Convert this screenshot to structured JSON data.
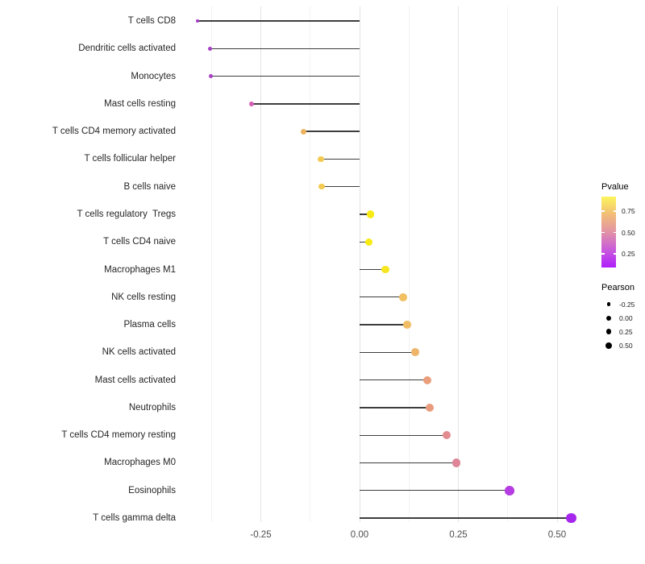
{
  "chart_data": {
    "type": "lollipop",
    "orientation": "horizontal",
    "title": "",
    "xlabel": "",
    "ylabel": "",
    "x_tick_labels": [
      "-0.25",
      "0.00",
      "0.25",
      "0.50"
    ],
    "x_tick_values": [
      -0.25,
      0.0,
      0.25,
      0.5
    ],
    "xlim": [
      -0.457,
      0.586
    ],
    "grid": {
      "minor_step": 0.125,
      "min": -0.375,
      "max": 0.5,
      "major_every": 0.25
    },
    "stick_color": "#3d3d3d",
    "background": "#ffffff",
    "legend_position": "right",
    "points": [
      {
        "label": "T cells CD8",
        "pearson": -0.41,
        "color": "#A43BC4",
        "size": 4.0
      },
      {
        "label": "Dendritic cells activated",
        "pearson": -0.378,
        "color": "#A73EC5",
        "size": 5.0
      },
      {
        "label": "Monocytes",
        "pearson": -0.376,
        "color": "#A940C6",
        "size": 5.2
      },
      {
        "label": "Mast cells resting",
        "pearson": -0.273,
        "color": "#D35FB4",
        "size": 6.3
      },
      {
        "label": "T cells CD4 memory activated",
        "pearson": -0.141,
        "color": "#EDB25F",
        "size": 7.0
      },
      {
        "label": "T cells follicular helper",
        "pearson": -0.098,
        "color": "#F3CA51",
        "size": 7.2
      },
      {
        "label": "B cells naive",
        "pearson": -0.096,
        "color": "#F3CA51",
        "size": 7.2
      },
      {
        "label": "T cells regulatory  Tregs",
        "pearson": 0.027,
        "color": "#F7EB13",
        "size": 9.3
      },
      {
        "label": "T cells CD4 naive",
        "pearson": 0.023,
        "color": "#F7EB13",
        "size": 9.3
      },
      {
        "label": "Macrophages M1",
        "pearson": 0.065,
        "color": "#F6E620",
        "size": 9.4
      },
      {
        "label": "NK cells resting",
        "pearson": 0.11,
        "color": "#F1C063",
        "size": 9.6
      },
      {
        "label": "Plasma cells",
        "pearson": 0.12,
        "color": "#F0BD66",
        "size": 9.7
      },
      {
        "label": "NK cells activated",
        "pearson": 0.141,
        "color": "#EFB56C",
        "size": 9.8
      },
      {
        "label": "Mast cells activated",
        "pearson": 0.171,
        "color": "#EA9E7B",
        "size": 10.2
      },
      {
        "label": "Neutrophils",
        "pearson": 0.178,
        "color": "#E99C7D",
        "size": 10.2
      },
      {
        "label": "T cells CD4 memory resting",
        "pearson": 0.22,
        "color": "#E28C90",
        "size": 10.4
      },
      {
        "label": "Macrophages M0",
        "pearson": 0.245,
        "color": "#DE8598",
        "size": 10.6
      },
      {
        "label": "Eosinophils",
        "pearson": 0.38,
        "color": "#B53BE2",
        "size": 11.6
      },
      {
        "label": "T cells gamma delta",
        "pearson": 0.535,
        "color": "#A626EE",
        "size": 12.8
      }
    ]
  },
  "legend": {
    "pvalue": {
      "title": "Pvalue",
      "tick_labels": [
        "0.75",
        "0.50",
        "0.25"
      ],
      "tick_positions": [
        0.205,
        0.51,
        0.807
      ],
      "gradient": [
        "#FCF55C",
        "#F2BD77",
        "#E293A5",
        "#C95BDB",
        "#AF1FFB"
      ]
    },
    "pearson": {
      "title": "Pearson",
      "dot_color": "#000000",
      "items": [
        {
          "label": "-0.25",
          "size": 4.7
        },
        {
          "label": "0.00",
          "size": 6.0
        },
        {
          "label": "0.25",
          "size": 6.8
        },
        {
          "label": "0.50",
          "size": 8.0
        }
      ]
    }
  }
}
